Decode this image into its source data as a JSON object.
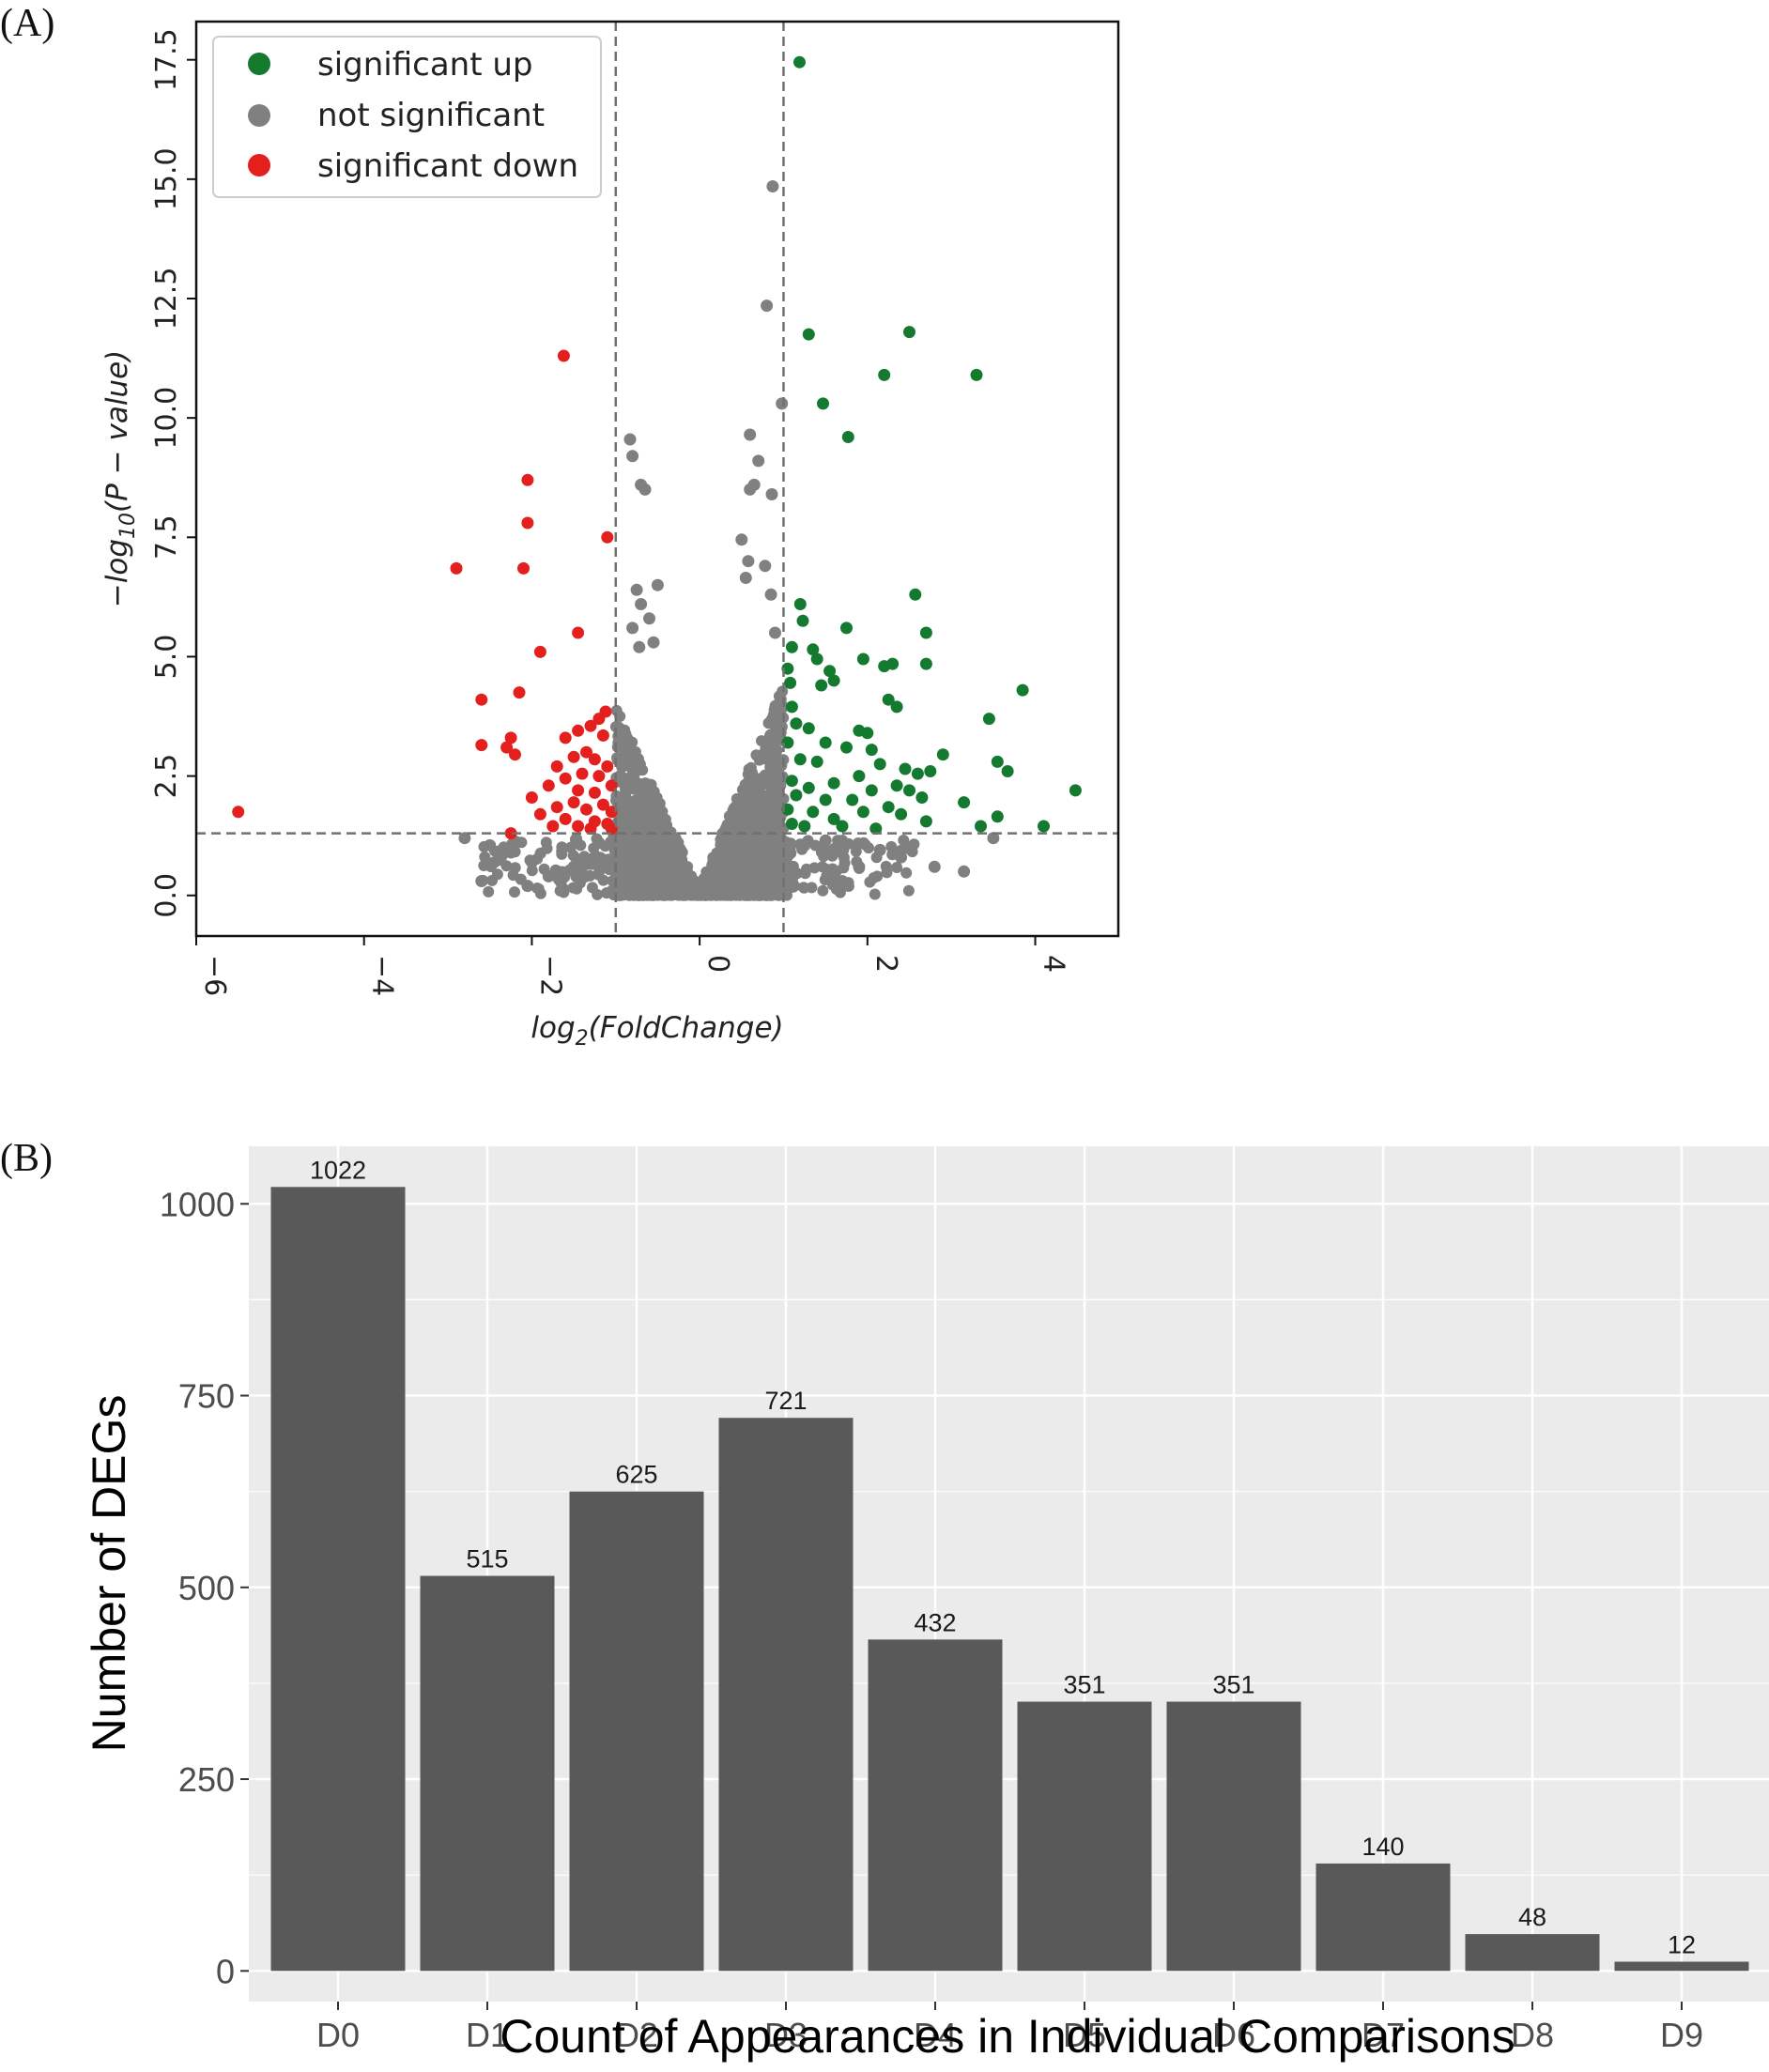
{
  "panels": {
    "a_label": "(A)",
    "b_label": "(B)"
  },
  "colors": {
    "up": "#137a30",
    "ns": "#808080",
    "down": "#e3201e",
    "bar": "#595959",
    "panel_bg": "#ebebeb",
    "grid": "#ffffff"
  },
  "chart_data": [
    {
      "id": "volcano",
      "type": "scatter",
      "title": "",
      "xlabel": "log2(FoldChange)",
      "ylabel": "−log10(P − value)",
      "xlim": [
        -6,
        4.99
      ],
      "ylim": [
        -0.85,
        18.3
      ],
      "xticks": [
        -6,
        -4,
        -2,
        0,
        2,
        4
      ],
      "xtick_labels": [
        "−6",
        "−4",
        "−2",
        "0",
        "2",
        "4"
      ],
      "yticks": [
        0,
        2.5,
        5,
        7.5,
        10,
        12.5,
        15,
        17.5
      ],
      "ytick_labels": [
        "0.0",
        "2.5",
        "5.0",
        "7.5",
        "10.0",
        "12.5",
        "15.0",
        "17.5"
      ],
      "thresholds": {
        "x": [
          -1,
          1
        ],
        "y": 1.3
      },
      "legend": {
        "position": "top-left",
        "entries": [
          {
            "key": "up",
            "label": "significant up"
          },
          {
            "key": "ns",
            "label": "not significant"
          },
          {
            "key": "down",
            "label": "significant down"
          }
        ]
      },
      "series": [
        {
          "name": "significant up",
          "key": "up",
          "points": [
            [
              1.19,
              17.45
            ],
            [
              1.3,
              11.75
            ],
            [
              2.5,
              11.8
            ],
            [
              2.2,
              10.9
            ],
            [
              3.3,
              10.9
            ],
            [
              1.47,
              10.3
            ],
            [
              1.77,
              9.6
            ],
            [
              2.57,
              6.3
            ],
            [
              1.2,
              6.1
            ],
            [
              1.23,
              5.75
            ],
            [
              1.75,
              5.6
            ],
            [
              2.7,
              5.5
            ],
            [
              1.1,
              5.2
            ],
            [
              1.35,
              5.15
            ],
            [
              1.4,
              4.95
            ],
            [
              1.95,
              4.95
            ],
            [
              2.3,
              4.85
            ],
            [
              2.7,
              4.85
            ],
            [
              2.2,
              4.8
            ],
            [
              1.05,
              4.75
            ],
            [
              1.55,
              4.7
            ],
            [
              1.6,
              4.5
            ],
            [
              1.08,
              4.45
            ],
            [
              1.45,
              4.4
            ],
            [
              3.85,
              4.3
            ],
            [
              2.25,
              4.1
            ],
            [
              1.1,
              3.95
            ],
            [
              2.35,
              3.95
            ],
            [
              3.45,
              3.7
            ],
            [
              1.15,
              3.6
            ],
            [
              1.3,
              3.5
            ],
            [
              1.9,
              3.45
            ],
            [
              2.0,
              3.4
            ],
            [
              1.05,
              3.2
            ],
            [
              1.5,
              3.2
            ],
            [
              1.75,
              3.1
            ],
            [
              2.05,
              3.05
            ],
            [
              2.9,
              2.95
            ],
            [
              1.2,
              2.85
            ],
            [
              1.4,
              2.8
            ],
            [
              3.55,
              2.8
            ],
            [
              2.15,
              2.75
            ],
            [
              2.45,
              2.65
            ],
            [
              2.75,
              2.6
            ],
            [
              3.67,
              2.6
            ],
            [
              2.6,
              2.55
            ],
            [
              1.9,
              2.5
            ],
            [
              1.1,
              2.4
            ],
            [
              1.6,
              2.35
            ],
            [
              2.35,
              2.3
            ],
            [
              1.3,
              2.25
            ],
            [
              2.05,
              2.2
            ],
            [
              2.5,
              2.2
            ],
            [
              4.48,
              2.2
            ],
            [
              1.15,
              2.1
            ],
            [
              2.65,
              2.05
            ],
            [
              1.5,
              2.0
            ],
            [
              1.82,
              2.0
            ],
            [
              3.15,
              1.95
            ],
            [
              2.25,
              1.85
            ],
            [
              1.05,
              1.8
            ],
            [
              1.35,
              1.75
            ],
            [
              1.95,
              1.75
            ],
            [
              2.4,
              1.7
            ],
            [
              3.55,
              1.65
            ],
            [
              1.6,
              1.6
            ],
            [
              2.7,
              1.55
            ],
            [
              1.1,
              1.5
            ],
            [
              1.25,
              1.45
            ],
            [
              3.35,
              1.45
            ],
            [
              4.1,
              1.45
            ],
            [
              2.1,
              1.4
            ],
            [
              1.7,
              1.45
            ]
          ]
        },
        {
          "name": "significant down",
          "key": "down",
          "points": [
            [
              -1.62,
              11.3
            ],
            [
              -2.05,
              8.7
            ],
            [
              -2.05,
              7.8
            ],
            [
              -1.1,
              7.5
            ],
            [
              -2.9,
              6.85
            ],
            [
              -2.1,
              6.85
            ],
            [
              -1.45,
              5.5
            ],
            [
              -1.9,
              5.1
            ],
            [
              -2.6,
              4.1
            ],
            [
              -2.15,
              4.25
            ],
            [
              -1.12,
              3.85
            ],
            [
              -1.2,
              3.7
            ],
            [
              -1.3,
              3.55
            ],
            [
              -1.45,
              3.45
            ],
            [
              -1.6,
              3.3
            ],
            [
              -1.15,
              3.35
            ],
            [
              -2.25,
              3.3
            ],
            [
              -2.6,
              3.15
            ],
            [
              -2.3,
              3.1
            ],
            [
              -2.2,
              2.95
            ],
            [
              -1.35,
              3.0
            ],
            [
              -1.5,
              2.9
            ],
            [
              -1.25,
              2.85
            ],
            [
              -1.7,
              2.7
            ],
            [
              -1.1,
              2.7
            ],
            [
              -1.4,
              2.55
            ],
            [
              -1.6,
              2.45
            ],
            [
              -1.2,
              2.5
            ],
            [
              -1.8,
              2.3
            ],
            [
              -1.45,
              2.2
            ],
            [
              -1.25,
              2.15
            ],
            [
              -1.05,
              2.3
            ],
            [
              -2.0,
              2.05
            ],
            [
              -1.5,
              1.95
            ],
            [
              -1.15,
              1.9
            ],
            [
              -1.7,
              1.85
            ],
            [
              -1.35,
              1.8
            ],
            [
              -1.05,
              1.75
            ],
            [
              -5.5,
              1.75
            ],
            [
              -1.9,
              1.7
            ],
            [
              -1.6,
              1.6
            ],
            [
              -1.25,
              1.55
            ],
            [
              -1.1,
              1.5
            ],
            [
              -1.75,
              1.45
            ],
            [
              -1.45,
              1.45
            ],
            [
              -1.05,
              1.4
            ],
            [
              -1.3,
              1.4
            ],
            [
              -2.25,
              1.3
            ]
          ]
        },
        {
          "name": "not significant",
          "key": "ns",
          "points": [
            [
              0.87,
              14.85
            ],
            [
              0.8,
              12.35
            ],
            [
              0.98,
              10.3
            ],
            [
              -0.83,
              9.55
            ],
            [
              0.6,
              9.65
            ],
            [
              -0.8,
              9.2
            ],
            [
              0.7,
              9.1
            ],
            [
              -0.7,
              8.6
            ],
            [
              -0.65,
              8.5
            ],
            [
              0.65,
              8.6
            ],
            [
              0.6,
              8.5
            ],
            [
              0.86,
              8.4
            ],
            [
              0.5,
              7.45
            ],
            [
              0.58,
              7.0
            ],
            [
              0.78,
              6.9
            ],
            [
              0.55,
              6.65
            ],
            [
              0.85,
              6.3
            ],
            [
              -0.5,
              6.5
            ],
            [
              -0.75,
              6.4
            ],
            [
              -0.7,
              6.1
            ],
            [
              -0.6,
              5.8
            ],
            [
              -0.8,
              5.6
            ],
            [
              -0.72,
              5.2
            ],
            [
              -0.55,
              5.3
            ],
            [
              0.9,
              5.5
            ],
            [
              -1.02,
              1.25
            ],
            [
              -1.2,
              1.1
            ],
            [
              -2.8,
              1.2
            ],
            [
              -2.5,
              1.05
            ],
            [
              -2.25,
              0.9
            ],
            [
              -2.0,
              0.7
            ],
            [
              -2.6,
              0.3
            ],
            [
              -2.05,
              0.2
            ],
            [
              1.5,
              1.15
            ],
            [
              2.5,
              1.0
            ],
            [
              3.15,
              0.5
            ],
            [
              3.5,
              1.2
            ],
            [
              2.15,
              0.95
            ],
            [
              1.9,
              0.6
            ],
            [
              2.4,
              0.8
            ],
            [
              1.7,
              0.3
            ],
            [
              2.8,
              0.6
            ],
            [
              -1.5,
              0.6
            ],
            [
              -1.8,
              0.4
            ]
          ],
          "envelope_note": "dense cloud of non-significant genes following a V shape around x = 0"
        }
      ]
    },
    {
      "id": "deg-bars",
      "type": "bar",
      "title": "",
      "xlabel": "Count of Appearances in Individual Comparisons",
      "ylabel": "Number of DEGs",
      "categories": [
        "D0",
        "D1",
        "D2",
        "D3",
        "D4",
        "D5",
        "D6",
        "D7",
        "D8",
        "D9"
      ],
      "values": [
        1022,
        515,
        625,
        721,
        432,
        351,
        351,
        140,
        48,
        12
      ],
      "ylim": [
        -40,
        1075
      ],
      "yticks": [
        0,
        250,
        500,
        750,
        1000
      ],
      "ytick_labels": [
        "0",
        "250",
        "500",
        "750",
        "1000"
      ],
      "grid": true
    }
  ]
}
